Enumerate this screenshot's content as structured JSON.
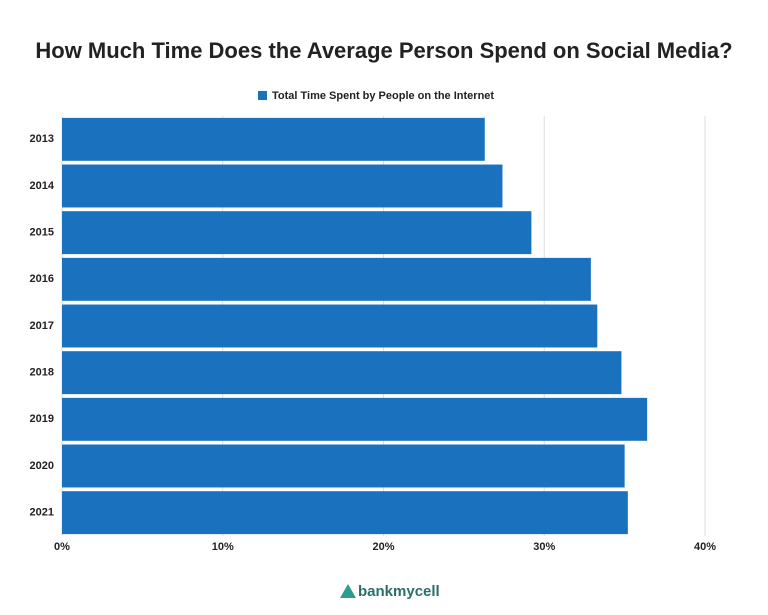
{
  "chart_data": {
    "type": "hbar",
    "title": "How Much Time Does the Average Person Spend on Social Media?",
    "categories": [
      "2013",
      "2014",
      "2015",
      "2016",
      "2017",
      "2018",
      "2019",
      "2020",
      "2021"
    ],
    "series": [
      {
        "name": "Total Time Spent by People on the Internet",
        "color": "#1a72bf",
        "values": [
          26.3,
          27.4,
          29.2,
          32.9,
          33.3,
          34.8,
          36.4,
          35.0,
          35.2
        ]
      }
    ],
    "xlim": [
      0,
      40
    ],
    "xticks": [
      {
        "value": 0,
        "label": "0%"
      },
      {
        "value": 10,
        "label": "10%"
      },
      {
        "value": 20,
        "label": "20%"
      },
      {
        "value": 30,
        "label": "30%"
      },
      {
        "value": 40,
        "label": "40%"
      }
    ],
    "grid": true,
    "legend": "top",
    "logo": "bankmycell"
  }
}
